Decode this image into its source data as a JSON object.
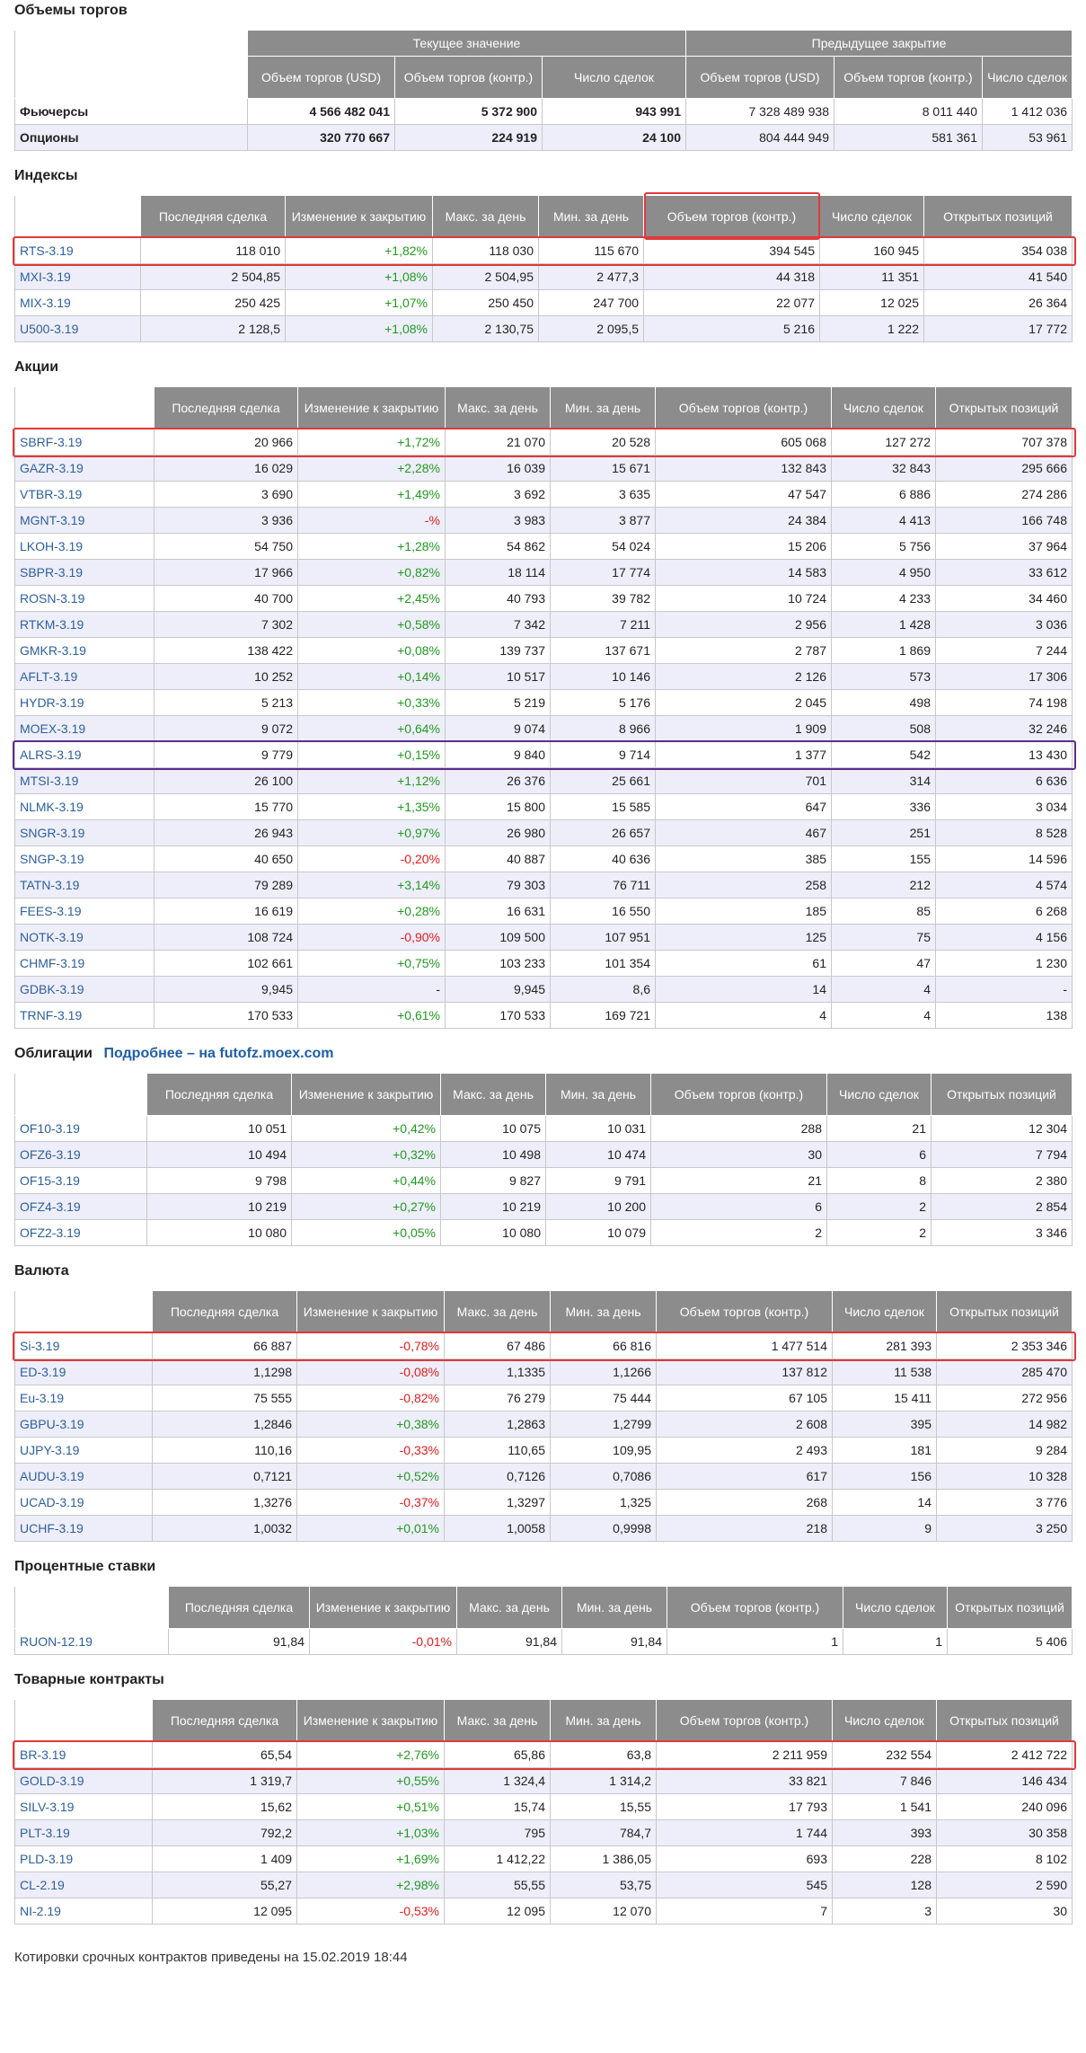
{
  "volumes": {
    "title": "Объемы торгов",
    "group_current": "Текущее значение",
    "group_prev": "Предыдущее закрытие",
    "headers": [
      "Объем торгов (USD)",
      "Объем торгов (контр.)",
      "Число сделок",
      "Объем торгов (USD)",
      "Объем торгов (контр.)",
      "Число сделок"
    ],
    "rows": [
      {
        "name": "Фьючерсы",
        "cells": [
          "4 566 482 041",
          "5 372 900",
          "943 991",
          "7 328 489 938",
          "8 011 440",
          "1 412 036"
        ]
      },
      {
        "name": "Опционы",
        "cells": [
          "320 770 667",
          "224 919",
          "24 100",
          "804 444 949",
          "581 361",
          "53 961"
        ]
      }
    ]
  },
  "col_headers": [
    "Последняя сделка",
    "Изменение к закрытию",
    "Макс. за день",
    "Мин. за день",
    "Объем торгов (контр.)",
    "Число сделок",
    "Открытых позиций"
  ],
  "indices": {
    "title": "Индексы",
    "rows": [
      [
        "RTS-3.19",
        "118 010",
        "+1,82%",
        "118 030",
        "115 670",
        "394 545",
        "160 945",
        "354 038"
      ],
      [
        "MXI-3.19",
        "2 504,85",
        "+1,08%",
        "2 504,95",
        "2 477,3",
        "44 318",
        "11 351",
        "41 540"
      ],
      [
        "MIX-3.19",
        "250 425",
        "+1,07%",
        "250 450",
        "247 700",
        "22 077",
        "12 025",
        "26 364"
      ],
      [
        "U500-3.19",
        "2 128,5",
        "+1,08%",
        "2 130,75",
        "2 095,5",
        "5 216",
        "1 222",
        "17 772"
      ]
    ]
  },
  "stocks": {
    "title": "Акции",
    "rows": [
      [
        "SBRF-3.19",
        "20 966",
        "+1,72%",
        "21 070",
        "20 528",
        "605 068",
        "127 272",
        "707 378"
      ],
      [
        "GAZR-3.19",
        "16 029",
        "+2,28%",
        "16 039",
        "15 671",
        "132 843",
        "32 843",
        "295 666"
      ],
      [
        "VTBR-3.19",
        "3 690",
        "+1,49%",
        "3 692",
        "3 635",
        "47 547",
        "6 886",
        "274 286"
      ],
      [
        "MGNT-3.19",
        "3 936",
        "-%",
        "3 983",
        "3 877",
        "24 384",
        "4 413",
        "166 748"
      ],
      [
        "LKOH-3.19",
        "54 750",
        "+1,28%",
        "54 862",
        "54 024",
        "15 206",
        "5 756",
        "37 964"
      ],
      [
        "SBPR-3.19",
        "17 966",
        "+0,82%",
        "18 114",
        "17 774",
        "14 583",
        "4 950",
        "33 612"
      ],
      [
        "ROSN-3.19",
        "40 700",
        "+2,45%",
        "40 793",
        "39 782",
        "10 724",
        "4 233",
        "34 460"
      ],
      [
        "RTKM-3.19",
        "7 302",
        "+0,58%",
        "7 342",
        "7 211",
        "2 956",
        "1 428",
        "3 036"
      ],
      [
        "GMKR-3.19",
        "138 422",
        "+0,08%",
        "139 737",
        "137 671",
        "2 787",
        "1 869",
        "7 244"
      ],
      [
        "AFLT-3.19",
        "10 252",
        "+0,14%",
        "10 517",
        "10 146",
        "2 126",
        "573",
        "17 306"
      ],
      [
        "HYDR-3.19",
        "5 213",
        "+0,33%",
        "5 219",
        "5 176",
        "2 045",
        "498",
        "74 198"
      ],
      [
        "MOEX-3.19",
        "9 072",
        "+0,64%",
        "9 074",
        "8 966",
        "1 909",
        "508",
        "32 246"
      ],
      [
        "ALRS-3.19",
        "9 779",
        "+0,15%",
        "9 840",
        "9 714",
        "1 377",
        "542",
        "13 430"
      ],
      [
        "MTSI-3.19",
        "26 100",
        "+1,12%",
        "26 376",
        "25 661",
        "701",
        "314",
        "6 636"
      ],
      [
        "NLMK-3.19",
        "15 770",
        "+1,35%",
        "15 800",
        "15 585",
        "647",
        "336",
        "3 034"
      ],
      [
        "SNGR-3.19",
        "26 943",
        "+0,97%",
        "26 980",
        "26 657",
        "467",
        "251",
        "8 528"
      ],
      [
        "SNGP-3.19",
        "40 650",
        "-0,20%",
        "40 887",
        "40 636",
        "385",
        "155",
        "14 596"
      ],
      [
        "TATN-3.19",
        "79 289",
        "+3,14%",
        "79 303",
        "76 711",
        "258",
        "212",
        "4 574"
      ],
      [
        "FEES-3.19",
        "16 619",
        "+0,28%",
        "16 631",
        "16 550",
        "185",
        "85",
        "6 268"
      ],
      [
        "NOTK-3.19",
        "108 724",
        "-0,90%",
        "109 500",
        "107 951",
        "125",
        "75",
        "4 156"
      ],
      [
        "CHMF-3.19",
        "102 661",
        "+0,75%",
        "103 233",
        "101 354",
        "61",
        "47",
        "1 230"
      ],
      [
        "GDBK-3.19",
        "9,945",
        "-",
        "9,945",
        "8,6",
        "14",
        "4",
        "-"
      ],
      [
        "TRNF-3.19",
        "170 533",
        "+0,61%",
        "170 533",
        "169 721",
        "4",
        "4",
        "138"
      ]
    ]
  },
  "bonds": {
    "title": "Облигации",
    "link": "Подробнее – на futofz.moex.com",
    "rows": [
      [
        "OF10-3.19",
        "10 051",
        "+0,42%",
        "10 075",
        "10 031",
        "288",
        "21",
        "12 304"
      ],
      [
        "OFZ6-3.19",
        "10 494",
        "+0,32%",
        "10 498",
        "10 474",
        "30",
        "6",
        "7 794"
      ],
      [
        "OF15-3.19",
        "9 798",
        "+0,44%",
        "9 827",
        "9 791",
        "21",
        "8",
        "2 380"
      ],
      [
        "OFZ4-3.19",
        "10 219",
        "+0,27%",
        "10 219",
        "10 200",
        "6",
        "2",
        "2 854"
      ],
      [
        "OFZ2-3.19",
        "10 080",
        "+0,05%",
        "10 080",
        "10 079",
        "2",
        "2",
        "3 346"
      ]
    ]
  },
  "currency": {
    "title": "Валюта",
    "rows": [
      [
        "Si-3.19",
        "66 887",
        "-0,78%",
        "67 486",
        "66 816",
        "1 477 514",
        "281 393",
        "2 353 346"
      ],
      [
        "ED-3.19",
        "1,1298",
        "-0,08%",
        "1,1335",
        "1,1266",
        "137 812",
        "11 538",
        "285 470"
      ],
      [
        "Eu-3.19",
        "75 555",
        "-0,82%",
        "76 279",
        "75 444",
        "67 105",
        "15 411",
        "272 956"
      ],
      [
        "GBPU-3.19",
        "1,2846",
        "+0,38%",
        "1,2863",
        "1,2799",
        "2 608",
        "395",
        "14 982"
      ],
      [
        "UJPY-3.19",
        "110,16",
        "-0,33%",
        "110,65",
        "109,95",
        "2 493",
        "181",
        "9 284"
      ],
      [
        "AUDU-3.19",
        "0,7121",
        "+0,52%",
        "0,7126",
        "0,7086",
        "617",
        "156",
        "10 328"
      ],
      [
        "UCAD-3.19",
        "1,3276",
        "-0,37%",
        "1,3297",
        "1,325",
        "268",
        "14",
        "3 776"
      ],
      [
        "UCHF-3.19",
        "1,0032",
        "+0,01%",
        "1,0058",
        "0,9998",
        "218",
        "9",
        "3 250"
      ]
    ]
  },
  "rates": {
    "title": "Процентные ставки",
    "rows": [
      [
        "RUON-12.19",
        "91,84",
        "-0,01%",
        "91,84",
        "91,84",
        "1",
        "1",
        "5 406"
      ]
    ]
  },
  "commodities": {
    "title": "Товарные контракты",
    "rows": [
      [
        "BR-3.19",
        "65,54",
        "+2,76%",
        "65,86",
        "63,8",
        "2 211 959",
        "232 554",
        "2 412 722"
      ],
      [
        "GOLD-3.19",
        "1 319,7",
        "+0,55%",
        "1 324,4",
        "1 314,2",
        "33 821",
        "7 846",
        "146 434"
      ],
      [
        "SILV-3.19",
        "15,62",
        "+0,51%",
        "15,74",
        "15,55",
        "17 793",
        "1 541",
        "240 096"
      ],
      [
        "PLT-3.19",
        "792,2",
        "+1,03%",
        "795",
        "784,7",
        "1 744",
        "393",
        "30 358"
      ],
      [
        "PLD-3.19",
        "1 409",
        "+1,69%",
        "1 412,22",
        "1 386,05",
        "693",
        "228",
        "8 102"
      ],
      [
        "CL-2.19",
        "55,27",
        "+2,98%",
        "55,55",
        "53,75",
        "545",
        "128",
        "2 590"
      ],
      [
        "NI-2.19",
        "12 095",
        "-0,53%",
        "12 095",
        "12 070",
        "7",
        "3",
        "30"
      ]
    ]
  },
  "footer": {
    "text": "Котировки срочных контрактов приведены на 15.02.2019 18:44"
  },
  "colors": {
    "header_bg": "#8c8c8c",
    "alt_row": "#eeeefa",
    "link": "#2c5f9e",
    "positive": "#1f9a1f",
    "negative": "#e31b1b",
    "highlight_red": "#e0393b",
    "highlight_purple": "#5a2d8c"
  }
}
